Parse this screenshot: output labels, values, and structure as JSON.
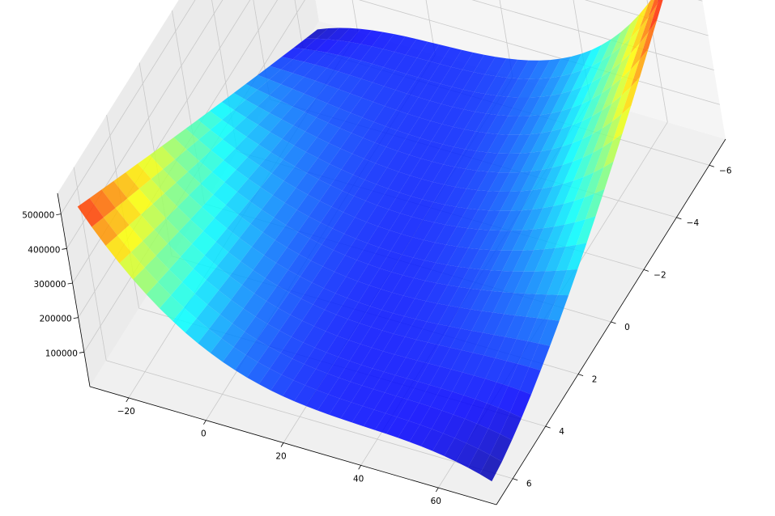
{
  "chart_data": {
    "type": "surface3d",
    "title": "",
    "xlabel": "",
    "ylabel": "",
    "zlabel": "",
    "colormap": "jet",
    "surface_alpha": 0.85,
    "grid": true,
    "x_range": [
      -30,
      75
    ],
    "y_range": [
      -7,
      7
    ],
    "z_range": [
      0,
      560000
    ],
    "x_ticks": [
      {
        "value": -20,
        "label": "−20"
      },
      {
        "value": 0,
        "label": "0"
      },
      {
        "value": 20,
        "label": "20"
      },
      {
        "value": 40,
        "label": "40"
      },
      {
        "value": 60,
        "label": "60"
      }
    ],
    "y_ticks": [
      {
        "value": -6,
        "label": "−6"
      },
      {
        "value": -4,
        "label": "−4"
      },
      {
        "value": -2,
        "label": "−2"
      },
      {
        "value": 0,
        "label": "0"
      },
      {
        "value": 2,
        "label": "2"
      },
      {
        "value": 4,
        "label": "4"
      },
      {
        "value": 6,
        "label": "6"
      }
    ],
    "z_ticks": [
      {
        "value": 100000,
        "label": "100000"
      },
      {
        "value": 200000,
        "label": "200000"
      },
      {
        "value": 300000,
        "label": "300000"
      },
      {
        "value": 400000,
        "label": "400000"
      },
      {
        "value": 500000,
        "label": "500000"
      }
    ],
    "surface_samples": [
      {
        "x": -28,
        "y": -6.5,
        "z": 20000
      },
      {
        "x": -28,
        "y": 0,
        "z": 250000
      },
      {
        "x": -28,
        "y": 6.5,
        "z": 490000
      },
      {
        "x": 25,
        "y": 0,
        "z": 20000
      },
      {
        "x": 72,
        "y": -6.5,
        "z": 545000
      },
      {
        "x": 72,
        "y": -2,
        "z": 340000
      },
      {
        "x": 72,
        "y": 6.5,
        "z": 20000
      }
    ]
  }
}
